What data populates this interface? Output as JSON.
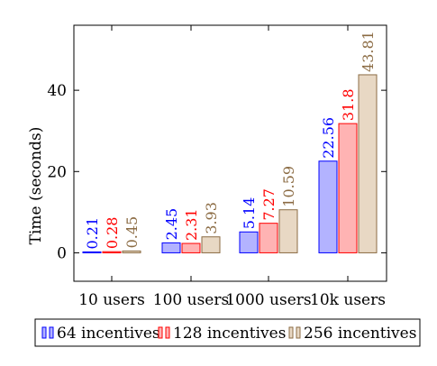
{
  "chart_data": {
    "type": "bar",
    "ylabel": "Time (seconds)",
    "xlabel": "",
    "title": "",
    "categories": [
      "10 users",
      "100 users",
      "1000 users",
      "10k users"
    ],
    "ylim": [
      -7,
      56
    ],
    "yticks": [
      0,
      20,
      40
    ],
    "grid": false,
    "legend_position": "bottom",
    "series": [
      {
        "name": "64 incentives",
        "values": [
          0.21,
          2.45,
          5.14,
          22.56
        ],
        "labels": [
          "0.21",
          "2.45",
          "5.14",
          "22.56"
        ],
        "stroke": "#0000ff",
        "fill": "#b3b3ff",
        "label_color": "#0000ff"
      },
      {
        "name": "128 incentives",
        "values": [
          0.28,
          2.31,
          7.27,
          31.8
        ],
        "labels": [
          "0.28",
          "2.31",
          "7.27",
          "31.8"
        ],
        "stroke": "#ff0000",
        "fill": "#ffb3b3",
        "label_color": "#ff0000"
      },
      {
        "name": "256 incentives",
        "values": [
          0.45,
          3.93,
          10.59,
          43.81
        ],
        "labels": [
          "0.45",
          "3.93",
          "10.59",
          "43.81"
        ],
        "stroke": "#8b6b43",
        "fill": "#e8d8c4",
        "label_color": "#8b6b43"
      }
    ]
  }
}
